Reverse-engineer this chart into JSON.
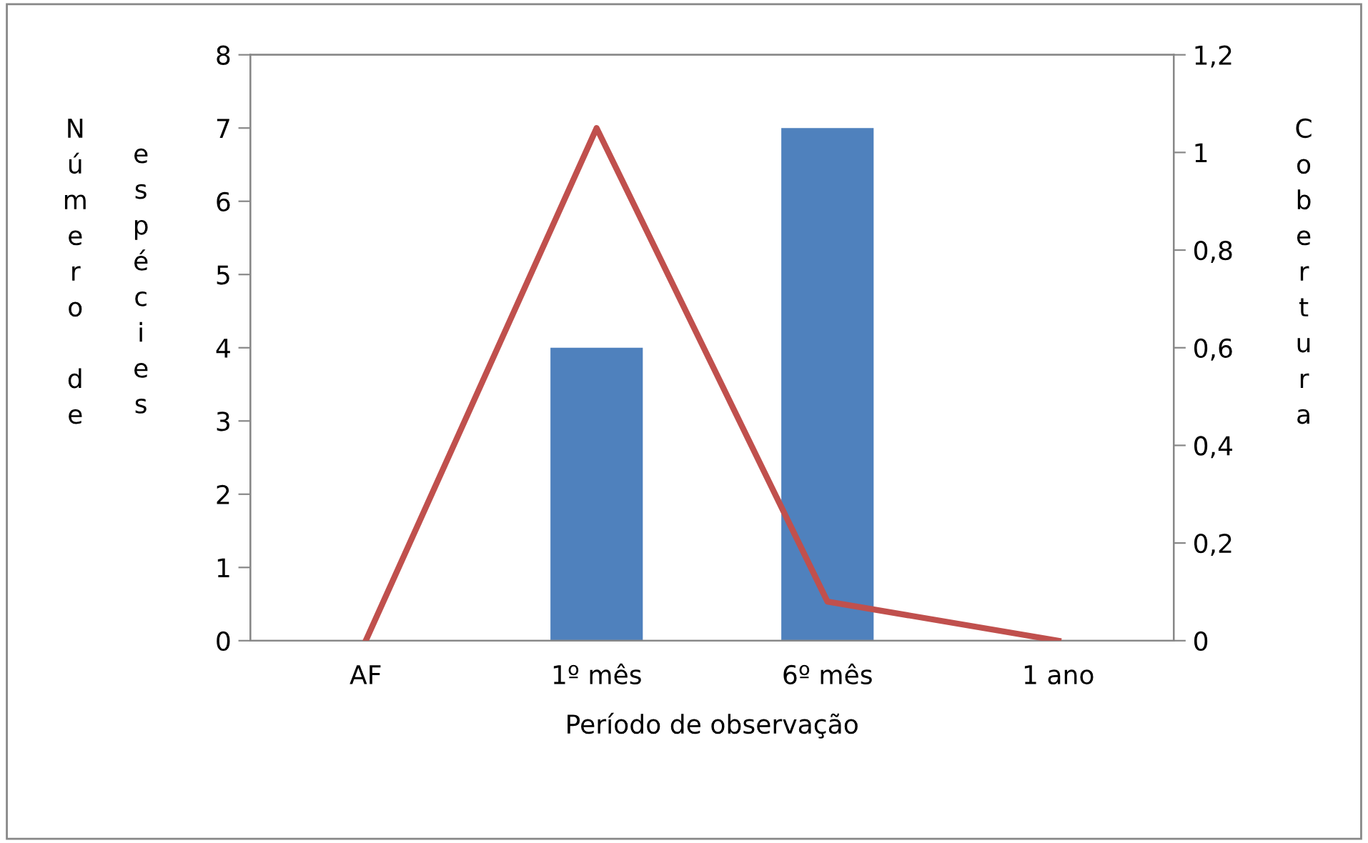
{
  "chart_data": {
    "type": "bar",
    "xlabel": "Período de observação",
    "ylabel": "Número de espécies",
    "y2label": "Cobertura",
    "categories": [
      "AF",
      "1º mês",
      "6º mês",
      "1 ano"
    ],
    "series": [
      {
        "color": "#4f81bd",
        "values": [
          0,
          4,
          7,
          0
        ]
      },
      {
        "type": "line",
        "axis": "y2",
        "color": "#c0504d",
        "values": [
          0,
          1.05,
          0.08,
          0
        ]
      }
    ],
    "ylim": [
      0,
      8
    ],
    "yticks": [
      0,
      1,
      2,
      3,
      4,
      5,
      6,
      7,
      8
    ],
    "y2lim": [
      0,
      1.2
    ],
    "y2ticks": [
      0,
      {
        "value": 0.2,
        "label": "0,2"
      },
      {
        "value": 0.4,
        "label": "0,4"
      },
      {
        "value": 0.6,
        "label": "0,6"
      },
      {
        "value": 0.8,
        "label": "0,8"
      },
      1,
      {
        "value": 1.2,
        "label": "1,2"
      }
    ],
    "grid": false,
    "legend": false,
    "marker": "none",
    "line_style": "solid"
  }
}
